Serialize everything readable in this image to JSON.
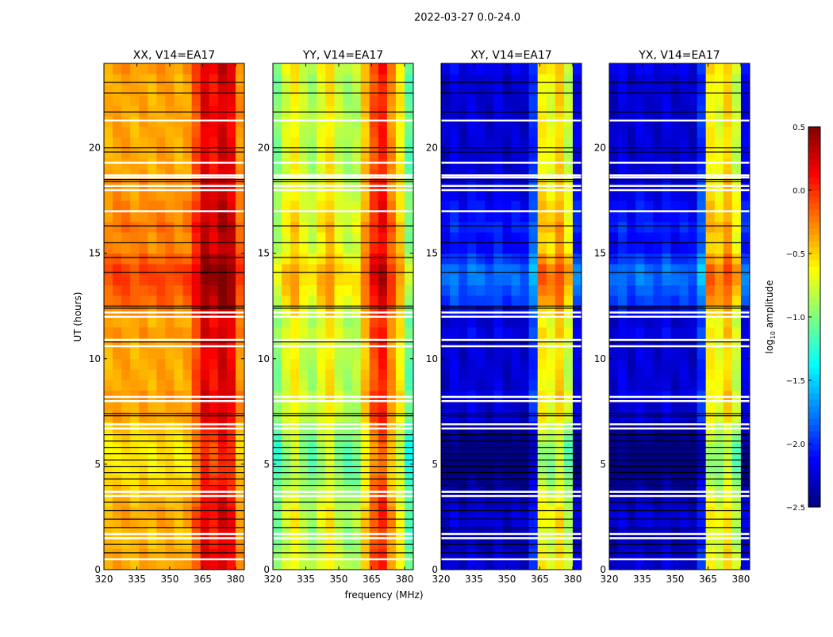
{
  "chart_data": {
    "type": "heatmap",
    "title": "2022-03-27 0.0-24.0",
    "xlabel": "frequency (MHz)",
    "ylabel": "UT (hours)",
    "xlim": [
      320,
      384
    ],
    "ylim": [
      0,
      24
    ],
    "xticks": [
      320,
      335,
      350,
      365,
      380
    ],
    "yticks": [
      0,
      5,
      10,
      15,
      20
    ],
    "freq_bin_starts_mhz": [
      320,
      324,
      328,
      332,
      336,
      340,
      344,
      348,
      352,
      356,
      360,
      364,
      368,
      372,
      376,
      380
    ],
    "freq_bin_width_mhz": 4,
    "time_bin_hours": 0.5,
    "panels": [
      {
        "title": "XX, V14=EA17",
        "freq_profile_log10": [
          -0.4,
          -0.35,
          -0.35,
          -0.4,
          -0.35,
          -0.4,
          -0.35,
          -0.35,
          -0.4,
          -0.35,
          -0.1,
          0.2,
          0.1,
          0.25,
          0.15,
          -0.3
        ]
      },
      {
        "title": "YY, V14=EA17",
        "freq_profile_log10": [
          -1.0,
          -0.75,
          -0.6,
          -0.8,
          -0.9,
          -0.7,
          -0.55,
          -0.8,
          -0.9,
          -0.85,
          -0.45,
          -0.1,
          0.05,
          -0.3,
          -0.6,
          -1.1
        ]
      },
      {
        "title": "XY, V14=EA17",
        "freq_profile_log10": [
          -2.3,
          -2.2,
          -2.3,
          -2.2,
          -2.25,
          -2.3,
          -2.2,
          -2.3,
          -2.25,
          -2.3,
          -2.0,
          -0.6,
          -0.7,
          -0.5,
          -0.8,
          -2.2
        ]
      },
      {
        "title": "YX, V14=EA17",
        "freq_profile_log10": [
          -2.3,
          -2.2,
          -2.3,
          -2.2,
          -2.25,
          -2.3,
          -2.2,
          -2.3,
          -2.25,
          -2.3,
          -2.0,
          -0.6,
          -0.7,
          -0.5,
          -0.8,
          -2.2
        ]
      }
    ],
    "time_offset_log10": [
      0,
      0,
      -0.05,
      -0.05,
      0,
      0,
      -0.05,
      -0.1,
      -0.15,
      -0.2,
      -0.2,
      -0.2,
      -0.15,
      -0.1,
      0,
      0,
      0.05,
      0,
      0,
      0,
      0,
      0,
      0.05,
      0,
      0.1,
      0.2,
      0.25,
      0.3,
      0.3,
      0.2,
      0.1,
      0.1,
      0.15,
      0.1,
      0.1,
      0.05,
      0.05,
      0,
      0,
      0,
      0,
      0,
      0,
      0,
      0,
      0,
      0,
      0.05
    ],
    "flagged_hours_white": [
      0.5,
      1.5,
      1.7,
      3.5,
      3.7,
      6.7,
      6.9,
      8.0,
      8.2,
      10.6,
      10.9,
      12.0,
      12.2,
      17.0,
      18.0,
      18.2,
      18.6,
      18.7,
      19.3,
      21.3
    ],
    "gap_lines_hours_black": [
      0.8,
      1.2,
      2.0,
      2.4,
      2.8,
      3.2,
      4.0,
      4.3,
      4.6,
      4.9,
      5.2,
      5.5,
      5.8,
      6.1,
      6.4,
      7.3,
      7.4,
      10.8,
      12.5,
      12.4,
      14.1,
      14.8,
      15.5,
      16.3,
      18.4,
      18.5,
      19.8,
      20.0,
      21.7,
      22.6,
      23.1
    ],
    "colorbar": {
      "label": "log10 amplitude",
      "label_main": "log",
      "label_sub": "10",
      "label_rest": " amplitude",
      "range": [
        -2.5,
        0.5
      ],
      "ticks": [
        "0.5",
        "0.0",
        "−0.5",
        "−1.0",
        "−1.5",
        "−2.0",
        "−2.5"
      ],
      "tick_values": [
        0.5,
        0.0,
        -0.5,
        -1.0,
        -1.5,
        -2.0,
        -2.5
      ],
      "colormap": "jet"
    }
  }
}
